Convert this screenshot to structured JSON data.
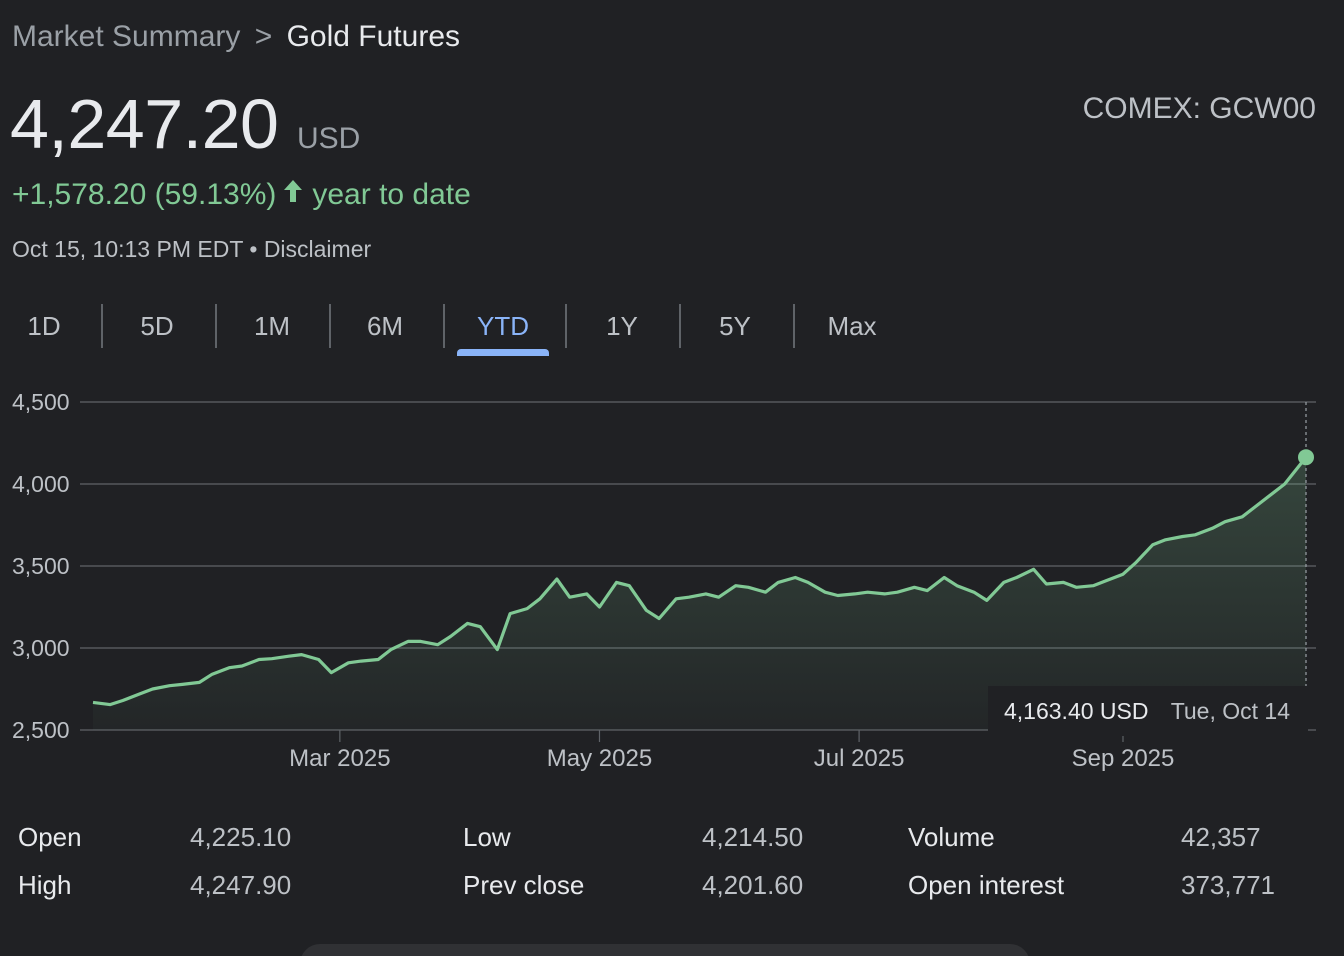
{
  "breadcrumb": {
    "parent": "Market Summary",
    "separator": ">",
    "current": "Gold Futures"
  },
  "quote": {
    "price": "4,247.20",
    "currency": "USD",
    "ticker": "COMEX: GCW00",
    "change": "+1,578.20 (59.13%)",
    "change_period": "year to date",
    "timestamp": "Oct 15, 10:13 PM EDT",
    "disclaimer": "Disclaimer"
  },
  "ranges": [
    "1D",
    "5D",
    "1M",
    "6M",
    "YTD",
    "1Y",
    "5Y",
    "Max"
  ],
  "active_range": "YTD",
  "colors": {
    "up": "#81c995",
    "accent": "#8ab4f8",
    "background": "#202124"
  },
  "chart_data": {
    "type": "area",
    "ylim": [
      2500,
      4500
    ],
    "y_ticks": [
      "4,500",
      "4,000",
      "3,500",
      "3,000",
      "2,500"
    ],
    "y_tick_values": [
      4500,
      4000,
      3500,
      3000,
      2500
    ],
    "x_ticks": [
      "Mar 2025",
      "May 2025",
      "Jul 2025",
      "Sep 2025"
    ],
    "x_tick_dates": [
      "2025-03-01",
      "2025-05-01",
      "2025-07-01",
      "2025-09-01"
    ],
    "x_range": [
      "2025-01-02",
      "2025-10-14"
    ],
    "grid": true,
    "series": [
      {
        "x": [
          "2025-01-02",
          "2025-01-06",
          "2025-01-09",
          "2025-01-13",
          "2025-01-16",
          "2025-01-20",
          "2025-01-23",
          "2025-01-27",
          "2025-01-30",
          "2025-02-03",
          "2025-02-06",
          "2025-02-10",
          "2025-02-13",
          "2025-02-17",
          "2025-02-20",
          "2025-02-24",
          "2025-02-27",
          "2025-03-03",
          "2025-03-06",
          "2025-03-10",
          "2025-03-13",
          "2025-03-17",
          "2025-03-20",
          "2025-03-24",
          "2025-03-27",
          "2025-03-31",
          "2025-04-03",
          "2025-04-07",
          "2025-04-10",
          "2025-04-14",
          "2025-04-17",
          "2025-04-21",
          "2025-04-24",
          "2025-04-28",
          "2025-05-01",
          "2025-05-05",
          "2025-05-08",
          "2025-05-12",
          "2025-05-15",
          "2025-05-19",
          "2025-05-22",
          "2025-05-26",
          "2025-05-29",
          "2025-06-02",
          "2025-06-05",
          "2025-06-09",
          "2025-06-12",
          "2025-06-16",
          "2025-06-19",
          "2025-06-23",
          "2025-06-26",
          "2025-06-30",
          "2025-07-03",
          "2025-07-07",
          "2025-07-10",
          "2025-07-14",
          "2025-07-17",
          "2025-07-21",
          "2025-07-24",
          "2025-07-28",
          "2025-07-31",
          "2025-08-04",
          "2025-08-07",
          "2025-08-11",
          "2025-08-14",
          "2025-08-18",
          "2025-08-21",
          "2025-08-25",
          "2025-08-28",
          "2025-09-01",
          "2025-09-04",
          "2025-09-08",
          "2025-09-11",
          "2025-09-15",
          "2025-09-18",
          "2025-09-22",
          "2025-09-25",
          "2025-09-29",
          "2025-10-02",
          "2025-10-06",
          "2025-10-09",
          "2025-10-14"
        ],
        "values": [
          2668,
          2655,
          2680,
          2720,
          2750,
          2770,
          2778,
          2790,
          2840,
          2880,
          2890,
          2930,
          2935,
          2950,
          2960,
          2930,
          2850,
          2910,
          2920,
          2930,
          2990,
          3040,
          3040,
          3020,
          3070,
          3150,
          3130,
          2990,
          3210,
          3240,
          3300,
          3420,
          3310,
          3330,
          3250,
          3400,
          3380,
          3230,
          3180,
          3300,
          3310,
          3330,
          3310,
          3380,
          3370,
          3340,
          3400,
          3430,
          3400,
          3340,
          3320,
          3330,
          3340,
          3330,
          3340,
          3370,
          3350,
          3430,
          3380,
          3340,
          3290,
          3400,
          3430,
          3480,
          3390,
          3400,
          3370,
          3380,
          3410,
          3450,
          3520,
          3630,
          3660,
          3680,
          3690,
          3730,
          3770,
          3800,
          3860,
          3940,
          4000,
          4163.4
        ]
      }
    ]
  },
  "tooltip": {
    "value": "4,163.40 USD",
    "date": "Tue, Oct 14"
  },
  "stats": [
    {
      "label": "Open",
      "value": "4,225.10"
    },
    {
      "label": "High",
      "value": "4,247.90"
    },
    {
      "label": "Low",
      "value": "4,214.50"
    },
    {
      "label": "Prev close",
      "value": "4,201.60"
    },
    {
      "label": "Volume",
      "value": "42,357"
    },
    {
      "label": "Open interest",
      "value": "373,771"
    }
  ]
}
